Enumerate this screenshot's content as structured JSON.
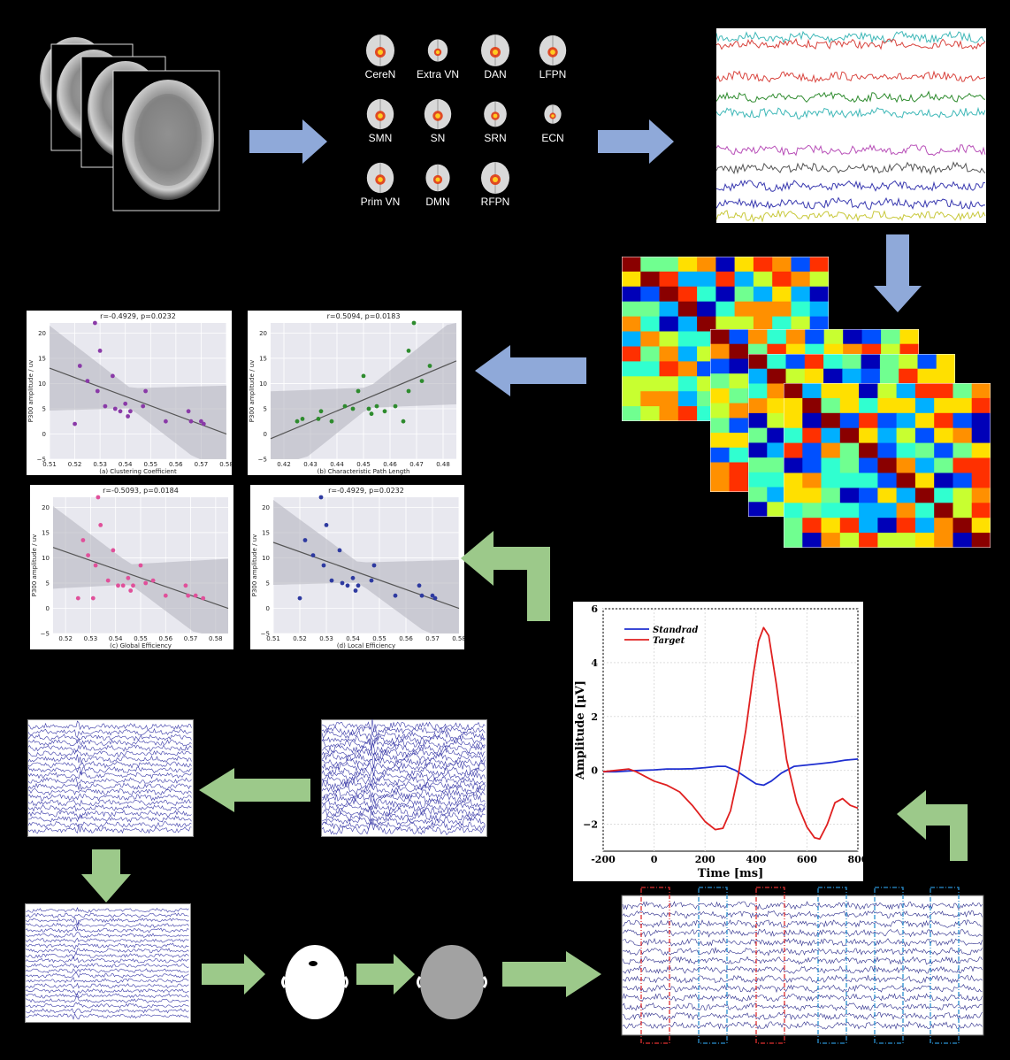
{
  "networks": [
    {
      "label": "CereN"
    },
    {
      "label": "Extra VN"
    },
    {
      "label": "DAN"
    },
    {
      "label": "LFPN"
    },
    {
      "label": "SMN"
    },
    {
      "label": "SN"
    },
    {
      "label": "SRN"
    },
    {
      "label": "ECN"
    },
    {
      "label": "Prim VN"
    },
    {
      "label": "DMN"
    },
    {
      "label": "RFPN"
    }
  ],
  "colors": {
    "blue_arrow": "#8fa9d9",
    "green_arrow": "#9cc98a",
    "ts": [
      "#3fb8b8",
      "#d9453f",
      "#d9453f",
      "#2e8b2e",
      "#3fb8b8",
      "#b84fb8",
      "#555555",
      "#3a3ab0",
      "#3a3ab0",
      "#c8c83a"
    ]
  },
  "chart_data": [
    {
      "type": "scatter",
      "title": "r=-0.4929, p=0.0232",
      "xlabel": "(a) Clustering Coefficient",
      "ylabel": "P300 amplitude / uv",
      "xlim": [
        0.51,
        0.58
      ],
      "ylim": [
        -5,
        22
      ],
      "xticks": [
        "0.51",
        "0.52",
        "0.53",
        "0.54",
        "0.55",
        "0.56",
        "0.57",
        "0.58"
      ],
      "yticks": [
        "20",
        "15",
        "10",
        "5",
        "0",
        "−5"
      ],
      "color": "#8a3aa8",
      "x": [
        0.52,
        0.522,
        0.525,
        0.528,
        0.529,
        0.53,
        0.532,
        0.535,
        0.536,
        0.538,
        0.54,
        0.541,
        0.542,
        0.547,
        0.548,
        0.556,
        0.565,
        0.566,
        0.57,
        0.571
      ],
      "y": [
        2.0,
        13.5,
        10.5,
        22.0,
        8.5,
        16.5,
        5.5,
        11.5,
        5.0,
        4.5,
        6.0,
        3.5,
        4.5,
        5.5,
        8.5,
        2.5,
        4.5,
        2.5,
        2.5,
        2.0
      ]
    },
    {
      "type": "scatter",
      "title": "r=0.5094, p=0.0183",
      "xlabel": "(b) Characteristic Path Length",
      "ylabel": "P300 amplitude / uv",
      "xlim": [
        0.415,
        0.485
      ],
      "ylim": [
        -5,
        22
      ],
      "xticks": [
        "0.42",
        "0.43",
        "0.44",
        "0.45",
        "0.46",
        "0.47",
        "0.48"
      ],
      "yticks": [
        "20",
        "15",
        "10",
        "5",
        "0",
        "−5"
      ],
      "color": "#2e8b2e",
      "x": [
        0.425,
        0.427,
        0.433,
        0.434,
        0.438,
        0.443,
        0.446,
        0.448,
        0.45,
        0.452,
        0.453,
        0.455,
        0.458,
        0.462,
        0.465,
        0.467,
        0.467,
        0.469,
        0.472,
        0.475
      ],
      "y": [
        2.5,
        3.0,
        3.0,
        4.5,
        2.5,
        5.5,
        5.0,
        8.5,
        11.5,
        5.0,
        4.0,
        5.5,
        4.5,
        5.5,
        2.5,
        8.5,
        16.5,
        22.0,
        10.5,
        13.5
      ]
    },
    {
      "type": "scatter",
      "title": "r=-0.5093, p=0.0184",
      "xlabel": "(c) Global Efficiency",
      "ylabel": "P300 amplitude / uv",
      "xlim": [
        0.515,
        0.585
      ],
      "ylim": [
        -5,
        22
      ],
      "xticks": [
        "0.52",
        "0.53",
        "0.54",
        "0.55",
        "0.56",
        "0.57",
        "0.58"
      ],
      "yticks": [
        "20",
        "15",
        "10",
        "5",
        "0",
        "−5"
      ],
      "color": "#e0509a",
      "x": [
        0.525,
        0.527,
        0.529,
        0.531,
        0.532,
        0.533,
        0.534,
        0.537,
        0.539,
        0.541,
        0.543,
        0.545,
        0.546,
        0.547,
        0.55,
        0.552,
        0.555,
        0.56,
        0.568,
        0.569,
        0.572,
        0.575
      ],
      "y": [
        2.0,
        13.5,
        10.5,
        2.0,
        8.5,
        22.0,
        16.5,
        5.5,
        11.5,
        4.5,
        4.5,
        6.0,
        3.5,
        4.5,
        8.5,
        5.0,
        5.5,
        2.5,
        4.5,
        2.5,
        2.5,
        2.0
      ]
    },
    {
      "type": "scatter",
      "title": "r=-0.4929, p=0.0232",
      "xlabel": "(d) Local Efficiency",
      "ylabel": "P300 amplitude / uv",
      "xlim": [
        0.51,
        0.58
      ],
      "ylim": [
        -5,
        22
      ],
      "xticks": [
        "0.51",
        "0.52",
        "0.53",
        "0.54",
        "0.55",
        "0.56",
        "0.57",
        "0.58"
      ],
      "yticks": [
        "20",
        "15",
        "10",
        "5",
        "0",
        "−5"
      ],
      "color": "#2e3aa0",
      "x": [
        0.52,
        0.522,
        0.525,
        0.528,
        0.529,
        0.53,
        0.532,
        0.535,
        0.536,
        0.538,
        0.54,
        0.541,
        0.542,
        0.547,
        0.548,
        0.556,
        0.565,
        0.566,
        0.57,
        0.571
      ],
      "y": [
        2.0,
        13.5,
        10.5,
        22.0,
        8.5,
        16.5,
        5.5,
        11.5,
        5.0,
        4.5,
        6.0,
        3.5,
        4.5,
        5.5,
        8.5,
        2.5,
        4.5,
        2.5,
        2.5,
        2.0
      ]
    },
    {
      "type": "line",
      "xlabel": "Time [ms]",
      "ylabel": "Amplitude [μV]",
      "xlim": [
        -200,
        800
      ],
      "ylim": [
        -3,
        6
      ],
      "xticks": [
        "-200",
        "0",
        "200",
        "400",
        "600",
        "800"
      ],
      "yticks": [
        "6",
        "4",
        "2",
        "0",
        "−2"
      ],
      "legend_placement": "top-left",
      "series": [
        {
          "name": "Standrad",
          "color": "#1f2fd0",
          "x": [
            -200,
            -150,
            -100,
            -50,
            0,
            50,
            100,
            150,
            200,
            250,
            280,
            320,
            360,
            400,
            430,
            460,
            500,
            550,
            600,
            650,
            700,
            750,
            800
          ],
          "y": [
            -0.05,
            -0.05,
            -0.02,
            0.0,
            0.02,
            0.05,
            0.05,
            0.06,
            0.1,
            0.15,
            0.15,
            0.0,
            -0.25,
            -0.5,
            -0.55,
            -0.4,
            -0.1,
            0.15,
            0.2,
            0.25,
            0.3,
            0.38,
            0.42
          ]
        },
        {
          "name": "Target",
          "color": "#e02020",
          "x": [
            -200,
            -150,
            -100,
            -70,
            -40,
            0,
            50,
            100,
            150,
            200,
            240,
            270,
            300,
            330,
            360,
            390,
            410,
            430,
            450,
            480,
            520,
            560,
            600,
            630,
            650,
            680,
            710,
            740,
            770,
            800
          ],
          "y": [
            -0.05,
            0.0,
            0.05,
            -0.05,
            -0.2,
            -0.4,
            -0.55,
            -0.8,
            -1.3,
            -1.9,
            -2.2,
            -2.15,
            -1.5,
            -0.2,
            1.5,
            3.6,
            4.8,
            5.3,
            5.0,
            3.2,
            0.4,
            -1.2,
            -2.1,
            -2.5,
            -2.55,
            -2.0,
            -1.2,
            -1.05,
            -1.3,
            -1.4
          ]
        }
      ]
    }
  ]
}
